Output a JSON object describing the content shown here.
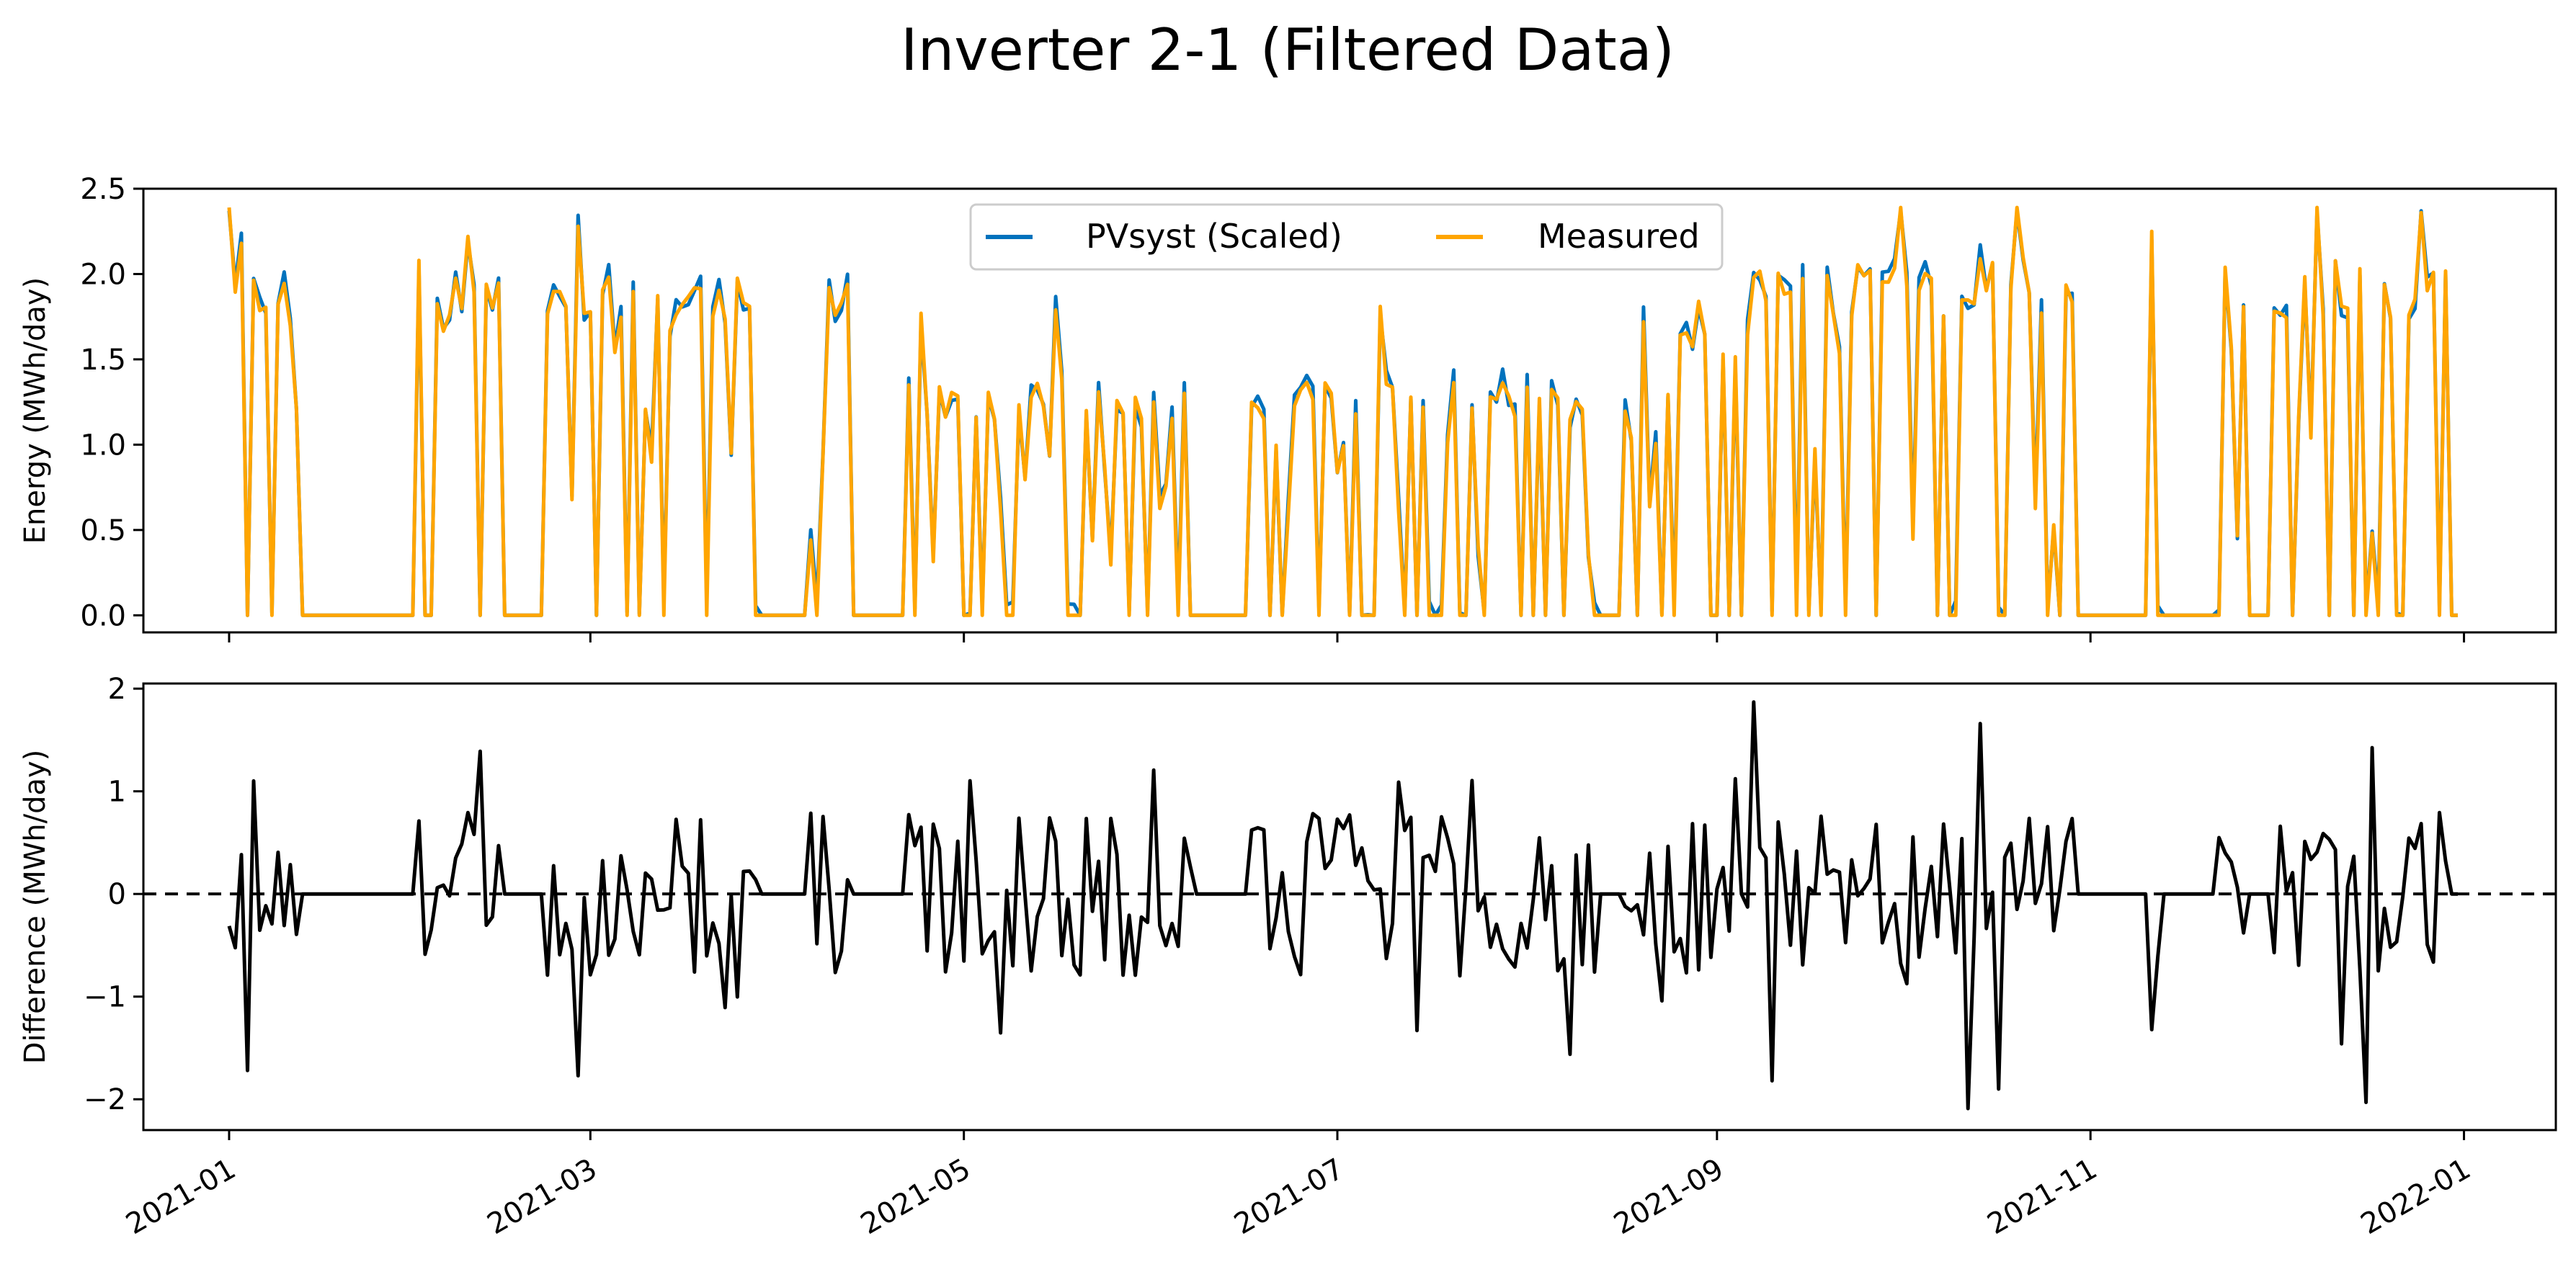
{
  "chart_data": {
    "title": "Inverter 2-1 (Filtered Data)",
    "x_ticks": [
      "2021-01",
      "2021-03",
      "2021-05",
      "2021-07",
      "2021-09",
      "2021-11",
      "2022-01"
    ],
    "xlim": [
      "2020-12-18",
      "2022-01-16"
    ],
    "panels": [
      {
        "type": "line",
        "ylabel": "Energy (MWh/day)",
        "ylim": [
          -0.1,
          2.5
        ],
        "yticks": [
          "0.0",
          "0.5",
          "1.0",
          "1.5",
          "2.0",
          "2.5"
        ],
        "legend": {
          "placement": "upper center",
          "columns": 2
        },
        "x_range": [
          "2021-01-01",
          "2021-12-31"
        ],
        "series": [
          {
            "name": "PVsyst (Scaled)",
            "color": "#0072BD"
          },
          {
            "name": "Measured",
            "color": "#FFA500"
          }
        ],
        "active_periods": [
          [
            "2021-01-01",
            "2021-01-12"
          ],
          [
            "2021-02-01",
            "2021-02-14"
          ],
          [
            "2021-02-22",
            "2021-03-28"
          ],
          [
            "2021-04-06",
            "2021-04-12"
          ],
          [
            "2021-04-22",
            "2021-06-07"
          ],
          [
            "2021-06-17",
            "2021-08-12"
          ],
          [
            "2021-08-17",
            "2021-09-04"
          ],
          [
            "2021-09-06",
            "2021-10-29"
          ],
          [
            "2021-11-11",
            "2021-11-12"
          ],
          [
            "2021-11-22",
            "2021-11-26"
          ],
          [
            "2021-12-01",
            "2021-12-29"
          ]
        ],
        "peak_values": [
          [
            "2021-01-01",
            2.39
          ],
          [
            "2021-01-03",
            2.18
          ],
          [
            "2021-02-01",
            2.08
          ],
          [
            "2021-02-09",
            2.22
          ],
          [
            "2021-02-27",
            2.28
          ],
          [
            "2021-04-09",
            1.92
          ],
          [
            "2021-04-24",
            1.77
          ],
          [
            "2021-05-16",
            1.79
          ],
          [
            "2021-07-08",
            1.81
          ],
          [
            "2021-08-29",
            1.84
          ],
          [
            "2021-09-07",
            1.98
          ],
          [
            "2021-10-01",
            2.39
          ],
          [
            "2021-10-20",
            2.39
          ],
          [
            "2021-11-11",
            2.25
          ],
          [
            "2021-12-08",
            2.39
          ],
          [
            "2021-12-25",
            2.36
          ]
        ]
      },
      {
        "type": "line",
        "ylabel": "Difference (MWh/day)",
        "ylim": [
          -2.3,
          2.05
        ],
        "yticks": [
          "−2",
          "−1",
          "0",
          "1",
          "2"
        ],
        "reference_line": {
          "y": 0,
          "style": "dashed",
          "color": "#000000"
        },
        "series": [
          {
            "color": "#000000"
          }
        ],
        "extremes": [
          [
            "2021-01-04",
            -1.72
          ],
          [
            "2021-02-27",
            -1.77
          ],
          [
            "2021-09-07",
            1.87
          ],
          [
            "2021-09-10",
            -1.82
          ],
          [
            "2021-10-12",
            -2.09
          ],
          [
            "2021-10-14",
            1.66
          ],
          [
            "2021-10-17",
            -1.9
          ],
          [
            "2021-12-16",
            -2.03
          ]
        ]
      }
    ]
  }
}
